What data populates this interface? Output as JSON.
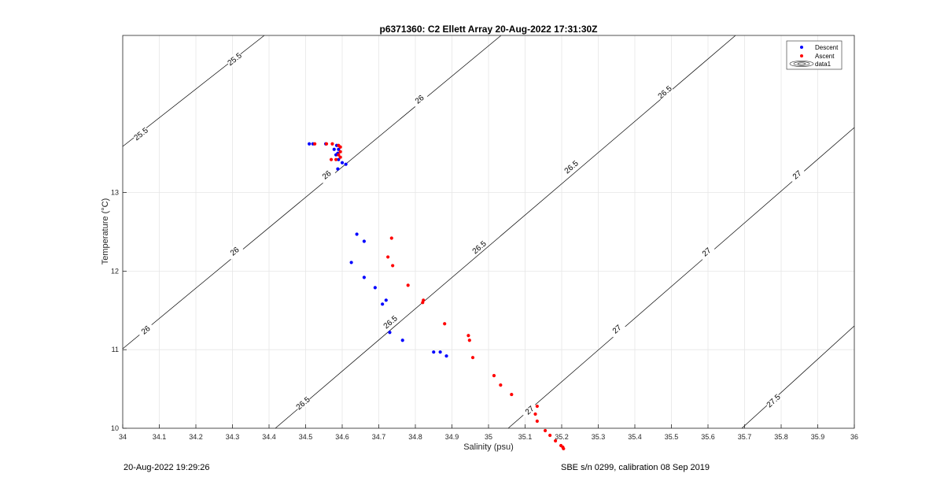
{
  "chart_data": {
    "type": "scatter",
    "title": "p6371360: C2 Ellett Array 20-Aug-2022 17:31:30Z",
    "xlabel": "Salinity (psu)",
    "ylabel": "Temperature (°C)",
    "xlim": [
      34,
      36
    ],
    "ylim": [
      10,
      15
    ],
    "xticks": [
      34,
      34.1,
      34.2,
      34.3,
      34.4,
      34.5,
      34.6,
      34.7,
      34.8,
      34.9,
      35,
      35.1,
      35.2,
      35.3,
      35.4,
      35.5,
      35.6,
      35.7,
      35.8,
      35.9,
      36
    ],
    "xticklabels": [
      "34",
      "34.1",
      "34.2",
      "34.3",
      "34.4",
      "34.5",
      "34.6",
      "34.7",
      "34.8",
      "34.9",
      "35",
      "35.1",
      "35.2",
      "35.3",
      "35.4",
      "35.5",
      "35.6",
      "35.7",
      "35.8",
      "35.9",
      "36"
    ],
    "yticks": [
      10,
      11,
      12,
      13
    ],
    "yticklabels": [
      "10",
      "11",
      "12",
      "13"
    ],
    "grid": true,
    "legend_position": "top-right",
    "legend": [
      "Descent",
      "Ascent",
      "data1"
    ],
    "series": [
      {
        "name": "Descent",
        "color": "#0000ff",
        "x": [
          34.51,
          34.52,
          34.555,
          34.585,
          34.59,
          34.588,
          34.583,
          34.578,
          34.59,
          34.6,
          34.61,
          34.588,
          34.64,
          34.66,
          34.625,
          34.66,
          34.69,
          34.72,
          34.71,
          34.73,
          34.765,
          34.85,
          34.868,
          34.885
        ],
        "y": [
          13.62,
          13.62,
          13.62,
          13.6,
          13.55,
          13.5,
          13.48,
          13.55,
          13.42,
          13.38,
          13.36,
          13.3,
          12.47,
          12.38,
          12.11,
          11.92,
          11.79,
          11.63,
          11.58,
          11.22,
          11.12,
          10.97,
          10.97,
          10.92
        ]
      },
      {
        "name": "Ascent",
        "color": "#ff0000",
        "x": [
          34.525,
          34.557,
          34.573,
          34.59,
          34.595,
          34.595,
          34.59,
          34.583,
          34.57,
          34.595,
          34.735,
          34.725,
          34.738,
          34.78,
          34.822,
          34.82,
          34.88,
          34.945,
          34.948,
          34.957,
          35.015,
          35.033,
          35.063,
          35.133,
          35.128,
          35.133,
          35.155,
          35.168,
          35.183,
          35.198,
          35.203,
          35.205
        ],
        "y": [
          13.62,
          13.62,
          13.62,
          13.6,
          13.58,
          13.52,
          13.48,
          13.42,
          13.42,
          13.45,
          12.42,
          12.18,
          12.07,
          11.82,
          11.63,
          11.6,
          11.33,
          11.18,
          11.12,
          10.9,
          10.67,
          10.55,
          10.43,
          10.28,
          10.18,
          10.09,
          9.97,
          9.91,
          9.84,
          9.78,
          9.76,
          9.74
        ]
      }
    ],
    "density_contours": [
      {
        "label": "25.5",
        "color": "#000000"
      },
      {
        "label": "26",
        "color": "#000000"
      },
      {
        "label": "26.5",
        "color": "#000000"
      },
      {
        "label": "27",
        "color": "#000000"
      },
      {
        "label": "27.5",
        "color": "#000000"
      }
    ]
  },
  "footer": {
    "left": "20-Aug-2022 19:29:26",
    "right": "SBE s/n 0299, calibration 08 Sep 2019"
  }
}
